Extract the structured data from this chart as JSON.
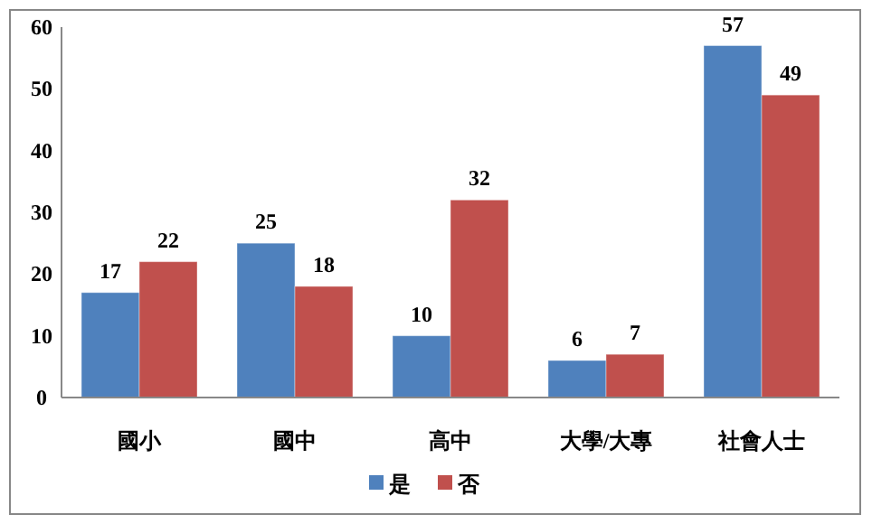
{
  "chart_data": {
    "type": "bar",
    "categories": [
      "國小",
      "國中",
      "高中",
      "大學/大專",
      "社會人士"
    ],
    "series": [
      {
        "name": "是",
        "color": "#4f81bd",
        "values": [
          17,
          25,
          10,
          6,
          57
        ]
      },
      {
        "name": "否",
        "color": "#c0504d",
        "values": [
          22,
          18,
          32,
          7,
          49
        ]
      }
    ],
    "ylim": [
      0,
      60
    ],
    "yticks": [
      0,
      10,
      20,
      30,
      40,
      50,
      60
    ],
    "grid": false,
    "legend": "bottom",
    "data_labels": true
  }
}
